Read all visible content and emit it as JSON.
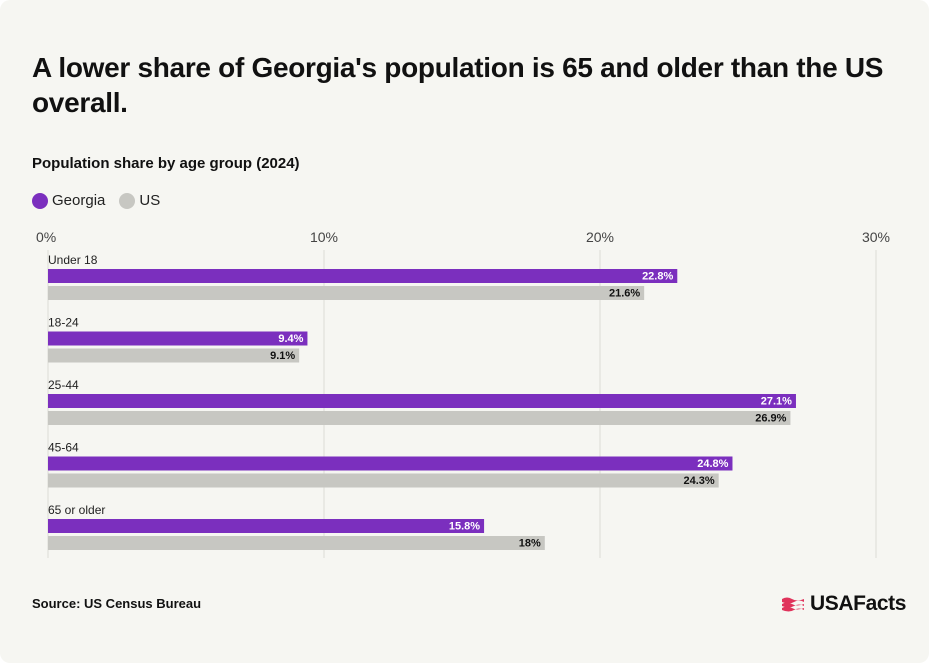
{
  "title": "A lower share of Georgia's population is 65 and older than the US overall.",
  "subtitle": "Population share by age group (2024)",
  "source": "Source: US Census Bureau",
  "logo": {
    "text": "USAFacts",
    "icon": "usa-flag-icon"
  },
  "colors": {
    "georgia": "#7b2fbe",
    "us": "#c7c7c2",
    "background": "#f6f6f2",
    "grid": "#dcdcd6",
    "logo_red": "#e0335b"
  },
  "chart_data": {
    "type": "bar",
    "orientation": "horizontal",
    "categories": [
      "Under 18",
      "18-24",
      "25-44",
      "45-64",
      "65 or older"
    ],
    "series": [
      {
        "name": "Georgia",
        "values": [
          22.8,
          9.4,
          27.1,
          24.8,
          15.8
        ],
        "labels": [
          "22.8%",
          "9.4%",
          "27.1%",
          "24.8%",
          "15.8%"
        ]
      },
      {
        "name": "US",
        "values": [
          21.6,
          9.1,
          26.9,
          24.3,
          18
        ],
        "labels": [
          "21.6%",
          "9.1%",
          "26.9%",
          "24.3%",
          "18%"
        ]
      }
    ],
    "xlim": [
      0,
      30
    ],
    "xticks": [
      "0%",
      "10%",
      "20%",
      "30%"
    ],
    "xtick_values": [
      0,
      10,
      20,
      30
    ],
    "grid": true,
    "legend_position": "top-left"
  }
}
